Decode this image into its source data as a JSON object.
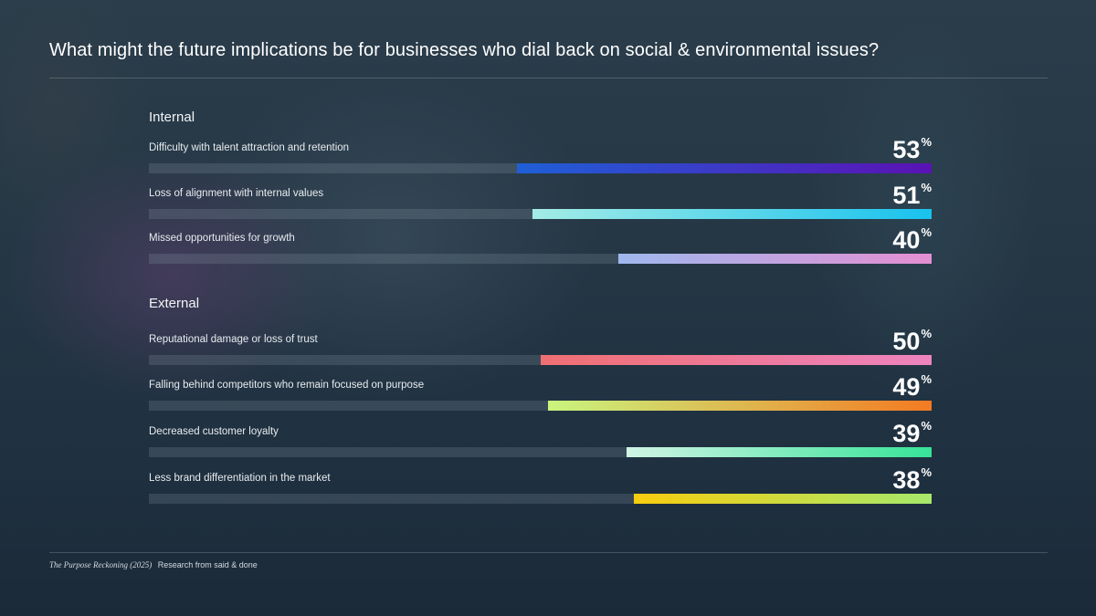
{
  "title": "What might the future implications be for businesses who dial back on social & environmental issues?",
  "footer": {
    "source": "The Purpose Reckoning (2025)",
    "credit": "Research from said & done"
  },
  "percent_symbol": "%",
  "chart_data": {
    "type": "bar",
    "orientation": "horizontal",
    "title": "What might the future implications be for businesses who dial back on social & environmental issues?",
    "xlim": [
      0,
      100
    ],
    "groups": [
      {
        "name": "Internal",
        "items": [
          {
            "label": "Difficulty with talent attraction and retention",
            "value": 53,
            "display": "53",
            "gradient": [
              "#1f5fd6",
              "#5a12b4"
            ]
          },
          {
            "label": "Loss of alignment with internal values",
            "value": 51,
            "display": "51",
            "gradient": [
              "#a3ece6",
              "#19c2ee"
            ]
          },
          {
            "label": "Missed opportunities for growth",
            "value": 40,
            "display": "40",
            "gradient": [
              "#9fb8ee",
              "#e48fd2"
            ]
          }
        ]
      },
      {
        "name": "External",
        "items": [
          {
            "label": "Reputational damage or loss of trust",
            "value": 50,
            "display": "50",
            "gradient": [
              "#ef6f72",
              "#ee84bf"
            ]
          },
          {
            "label": "Falling behind competitors who remain focused on purpose",
            "value": 49,
            "display": "49",
            "gradient": [
              "#c9f57e",
              "#f37a22"
            ]
          },
          {
            "label": "Decreased customer loyalty",
            "value": 39,
            "display": "39",
            "gradient": [
              "#cff4e4",
              "#37e398"
            ]
          },
          {
            "label": "Less brand differentiation in the market",
            "value": 38,
            "display": "38",
            "gradient": [
              "#f8cd10",
              "#a6e86b"
            ]
          }
        ]
      }
    ]
  }
}
